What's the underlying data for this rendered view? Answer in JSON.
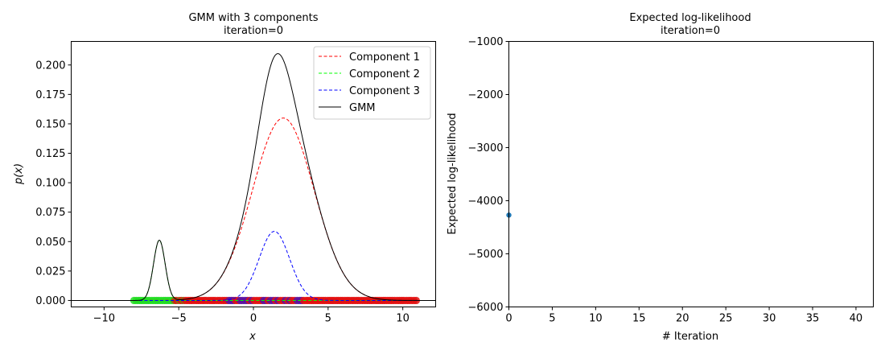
{
  "chart_data": [
    {
      "type": "line",
      "title": "GMM with 3 components",
      "subtitle": "iteration=0",
      "xlabel": "x",
      "ylabel": "p(x)",
      "xlim": [
        -12.2,
        12.2
      ],
      "ylim": [
        -0.0055,
        0.22
      ],
      "grid": false,
      "legend_position": "top-right",
      "xticks": [
        -10,
        -5,
        0,
        5,
        10
      ],
      "xtick_labels": [
        "−10",
        "−5",
        "0",
        "5",
        "10"
      ],
      "yticks": [
        0.0,
        0.025,
        0.05,
        0.075,
        0.1,
        0.125,
        0.15,
        0.175,
        0.2
      ],
      "ytick_labels": [
        "0.000",
        "0.025",
        "0.050",
        "0.075",
        "0.100",
        "0.125",
        "0.150",
        "0.175",
        "0.200"
      ],
      "series": [
        {
          "name": "Component 1",
          "style": "dashed",
          "color": "#ff0000",
          "weight": 0.8,
          "mean": 2.0,
          "std": 2.06
        },
        {
          "name": "Component 2",
          "style": "dashed",
          "color": "#00ff00",
          "weight": 0.05,
          "mean": -6.3,
          "std": 0.39
        },
        {
          "name": "Component 3",
          "style": "dashed",
          "color": "#0000ff",
          "weight": 0.15,
          "mean": 1.4,
          "std": 1.02
        },
        {
          "name": "GMM",
          "style": "solid",
          "color": "#000000"
        }
      ],
      "sample_points": {
        "y": 0.0,
        "x_range": [
          -8,
          11
        ],
        "colors": {
          "component_1": "#e31010",
          "component_2": "#22dd22",
          "component_3": "#5a10a0"
        }
      }
    },
    {
      "type": "scatter",
      "title": "Expected log-likelihood",
      "subtitle": "iteration=0",
      "xlabel": "# Iteration",
      "ylabel": "Expected log-likelihood",
      "xlim": [
        0,
        42
      ],
      "ylim": [
        -6000,
        -1000
      ],
      "grid": false,
      "xticks": [
        0,
        5,
        10,
        15,
        20,
        25,
        30,
        35,
        40
      ],
      "xtick_labels": [
        "0",
        "5",
        "10",
        "15",
        "20",
        "25",
        "30",
        "35",
        "40"
      ],
      "yticks": [
        -6000,
        -5000,
        -4000,
        -3000,
        -2000,
        -1000
      ],
      "ytick_labels": [
        "−6000",
        "−5000",
        "−4000",
        "−3000",
        "−2000",
        "−1000"
      ],
      "points": [
        {
          "x": 0,
          "y": -4270
        }
      ],
      "point_color": "#1f77b4"
    }
  ]
}
